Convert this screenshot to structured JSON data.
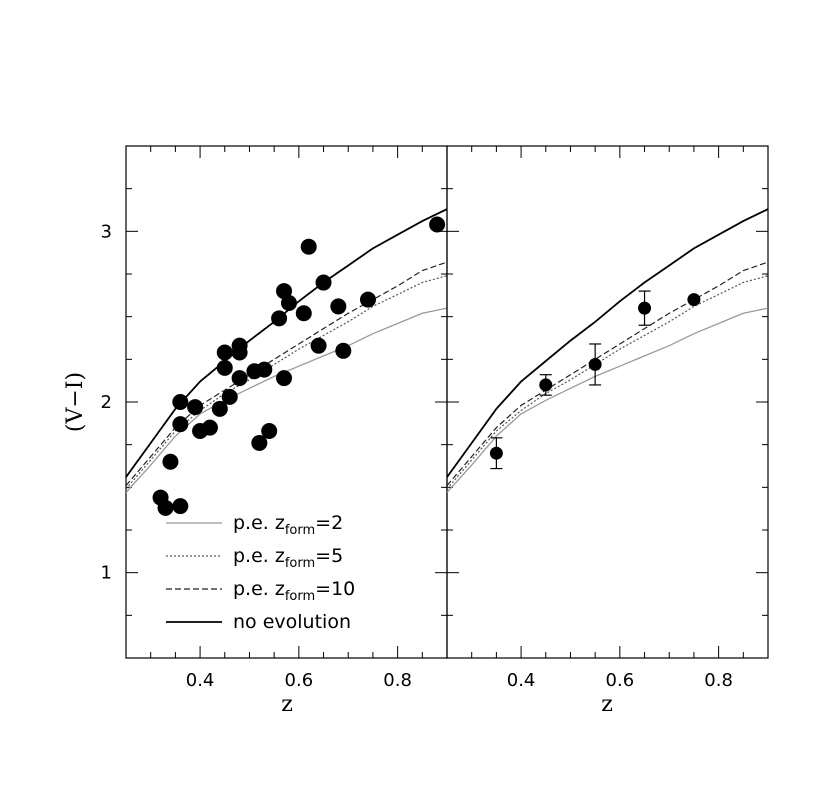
{
  "chart_data": {
    "type": "scatter",
    "ylabel": "(V−I)",
    "xlim": [
      0.25,
      0.9
    ],
    "ylim": [
      0.5,
      3.5
    ],
    "x_ticks": [
      0.4,
      0.6,
      0.8
    ],
    "x_tick_labels": [
      "0.4",
      "0.6",
      "0.8"
    ],
    "y_ticks": [
      1,
      2,
      3
    ],
    "y_tick_labels": [
      "1",
      "2",
      "3"
    ],
    "x_minor_step": 0.05,
    "y_minor_step": 0.25,
    "colors": {
      "pe2": "#9a9a9a",
      "pe5": "#555555",
      "pe10": "#222222",
      "noev": "#000000",
      "point": "#000000"
    },
    "legend": {
      "placement": "lower-left of left panel",
      "entries": [
        {
          "key": "pe2",
          "text": "p.e. z",
          "sub": "form",
          "suffix": "=2"
        },
        {
          "key": "pe5",
          "text": "p.e. z",
          "sub": "form",
          "suffix": "=5"
        },
        {
          "key": "pe10",
          "text": "p.e. z",
          "sub": "form",
          "suffix": "=10"
        },
        {
          "key": "noev",
          "text": "no evolution",
          "sub": "",
          "suffix": ""
        }
      ]
    },
    "models": {
      "noev": [
        [
          0.25,
          1.56
        ],
        [
          0.3,
          1.76
        ],
        [
          0.35,
          1.96
        ],
        [
          0.4,
          2.12
        ],
        [
          0.45,
          2.24
        ],
        [
          0.5,
          2.36
        ],
        [
          0.55,
          2.47
        ],
        [
          0.6,
          2.59
        ],
        [
          0.65,
          2.7
        ],
        [
          0.7,
          2.8
        ],
        [
          0.75,
          2.9
        ],
        [
          0.8,
          2.98
        ],
        [
          0.85,
          3.06
        ],
        [
          0.9,
          3.13
        ]
      ],
      "pe10": [
        [
          0.25,
          1.51
        ],
        [
          0.3,
          1.68
        ],
        [
          0.35,
          1.85
        ],
        [
          0.4,
          1.98
        ],
        [
          0.45,
          2.07
        ],
        [
          0.5,
          2.16
        ],
        [
          0.55,
          2.25
        ],
        [
          0.6,
          2.34
        ],
        [
          0.65,
          2.43
        ],
        [
          0.7,
          2.52
        ],
        [
          0.75,
          2.6
        ],
        [
          0.8,
          2.68
        ],
        [
          0.85,
          2.77
        ],
        [
          0.9,
          2.82
        ]
      ],
      "pe5": [
        [
          0.25,
          1.49
        ],
        [
          0.3,
          1.66
        ],
        [
          0.35,
          1.83
        ],
        [
          0.4,
          1.95
        ],
        [
          0.45,
          2.05
        ],
        [
          0.5,
          2.13
        ],
        [
          0.55,
          2.22
        ],
        [
          0.6,
          2.31
        ],
        [
          0.65,
          2.39
        ],
        [
          0.7,
          2.47
        ],
        [
          0.75,
          2.56
        ],
        [
          0.8,
          2.63
        ],
        [
          0.85,
          2.7
        ],
        [
          0.9,
          2.74
        ]
      ],
      "pe2": [
        [
          0.25,
          1.47
        ],
        [
          0.3,
          1.63
        ],
        [
          0.35,
          1.8
        ],
        [
          0.4,
          1.93
        ],
        [
          0.45,
          2.01
        ],
        [
          0.5,
          2.08
        ],
        [
          0.55,
          2.15
        ],
        [
          0.6,
          2.21
        ],
        [
          0.65,
          2.27
        ],
        [
          0.7,
          2.33
        ],
        [
          0.75,
          2.4
        ],
        [
          0.8,
          2.46
        ],
        [
          0.85,
          2.52
        ],
        [
          0.9,
          2.55
        ]
      ]
    },
    "panels": [
      {
        "xlabel": "z",
        "points": [
          {
            "x": 0.32,
            "y": 1.44
          },
          {
            "x": 0.33,
            "y": 1.38
          },
          {
            "x": 0.34,
            "y": 1.65
          },
          {
            "x": 0.36,
            "y": 1.39
          },
          {
            "x": 0.36,
            "y": 1.87
          },
          {
            "x": 0.36,
            "y": 2.0
          },
          {
            "x": 0.39,
            "y": 1.97
          },
          {
            "x": 0.4,
            "y": 1.83
          },
          {
            "x": 0.42,
            "y": 1.85
          },
          {
            "x": 0.44,
            "y": 1.96
          },
          {
            "x": 0.45,
            "y": 2.29
          },
          {
            "x": 0.45,
            "y": 2.2
          },
          {
            "x": 0.46,
            "y": 2.03
          },
          {
            "x": 0.48,
            "y": 2.33
          },
          {
            "x": 0.48,
            "y": 2.29
          },
          {
            "x": 0.48,
            "y": 2.14
          },
          {
            "x": 0.51,
            "y": 2.18
          },
          {
            "x": 0.52,
            "y": 1.76
          },
          {
            "x": 0.53,
            "y": 2.19
          },
          {
            "x": 0.54,
            "y": 1.83
          },
          {
            "x": 0.56,
            "y": 2.49
          },
          {
            "x": 0.57,
            "y": 2.65
          },
          {
            "x": 0.57,
            "y": 2.14
          },
          {
            "x": 0.58,
            "y": 2.58
          },
          {
            "x": 0.61,
            "y": 2.52
          },
          {
            "x": 0.62,
            "y": 2.91
          },
          {
            "x": 0.64,
            "y": 2.33
          },
          {
            "x": 0.65,
            "y": 2.7
          },
          {
            "x": 0.68,
            "y": 2.56
          },
          {
            "x": 0.69,
            "y": 2.3
          },
          {
            "x": 0.74,
            "y": 2.6
          },
          {
            "x": 0.88,
            "y": 3.04
          }
        ],
        "errors": []
      },
      {
        "xlabel": "z",
        "points": [
          {
            "x": 0.35,
            "y": 1.7,
            "err": 0.09
          },
          {
            "x": 0.45,
            "y": 2.1,
            "err": 0.06
          },
          {
            "x": 0.55,
            "y": 2.22,
            "err": 0.12
          },
          {
            "x": 0.65,
            "y": 2.55,
            "err": 0.1
          },
          {
            "x": 0.75,
            "y": 2.6,
            "err": 0.0
          }
        ]
      }
    ]
  }
}
